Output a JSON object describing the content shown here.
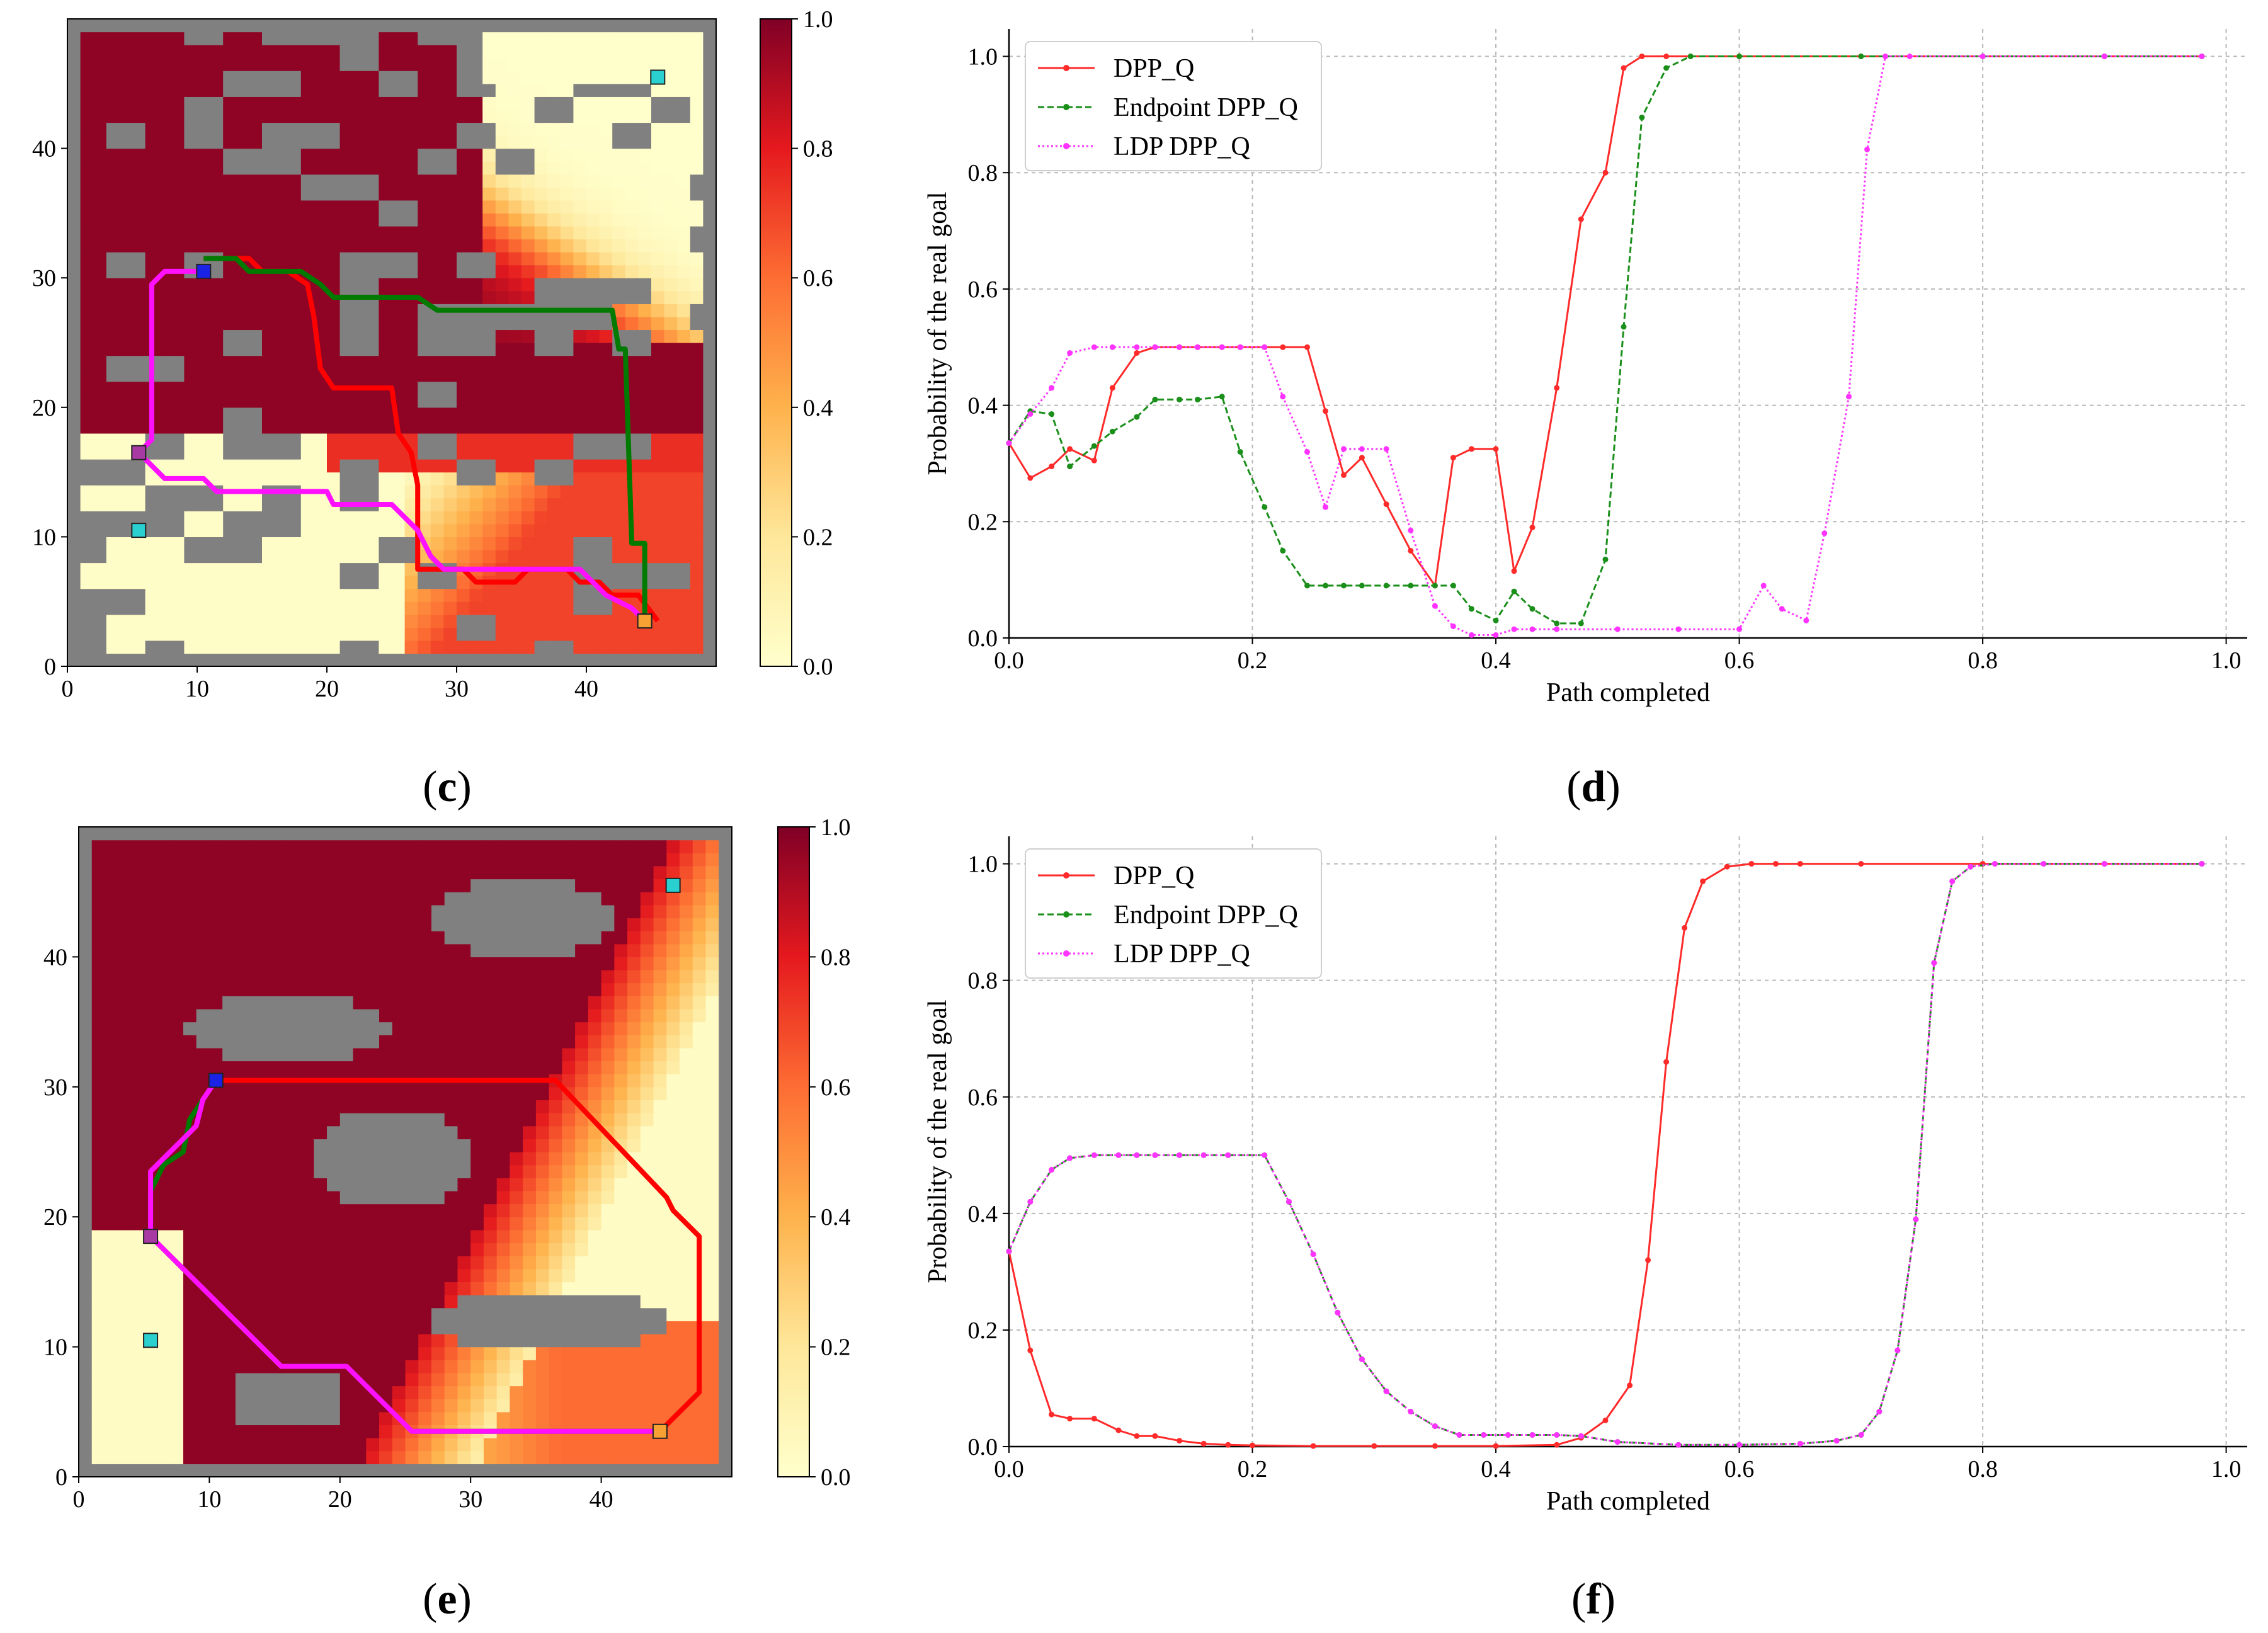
{
  "colors": {
    "obstacle": "#808080",
    "dpp_q": "#ff2a2a",
    "endpoint_dpp_q": "#1a8f1a",
    "ldp_dpp_q": "#ff33ff",
    "start": "#1a22e6",
    "goal_true": "#f7a033",
    "goal_decoy": "#2ad0d0",
    "waypoint": "#a83aa3",
    "path_red": "#ff0000",
    "path_green": "#007a00",
    "path_magenta": "#ff10ff"
  },
  "captions": {
    "c": {
      "open": "(",
      "letter": "c",
      "close": ")"
    },
    "d": {
      "open": "(",
      "letter": "d",
      "close": ")"
    },
    "e": {
      "open": "(",
      "letter": "e",
      "close": ")"
    },
    "f": {
      "open": "(",
      "letter": "f",
      "close": ")"
    }
  },
  "chart_data": [
    {
      "id": "c",
      "type": "heatmap",
      "title": "",
      "map": "maze",
      "xlim": [
        0,
        50
      ],
      "ylim": [
        0,
        50
      ],
      "xticks": [
        "0",
        "10",
        "20",
        "30",
        "40"
      ],
      "yticks": [
        "0",
        "10",
        "20",
        "30",
        "40"
      ],
      "colorbar": {
        "range": [
          0.0,
          1.0
        ],
        "ticks": [
          "0.0",
          "0.2",
          "0.4",
          "0.6",
          "0.8",
          "1.0"
        ]
      },
      "markers": [
        {
          "kind": "start",
          "x": 10.5,
          "y": 30.5
        },
        {
          "kind": "waypoint",
          "x": 5.5,
          "y": 16.5
        },
        {
          "kind": "goal_decoy",
          "x": 5.5,
          "y": 10.5
        },
        {
          "kind": "goal_decoy",
          "x": 45.5,
          "y": 45.5
        },
        {
          "kind": "goal_true",
          "x": 44.5,
          "y": 3.5
        }
      ],
      "paths": [
        {
          "name": "red",
          "points": [
            [
              10.5,
              31.5
            ],
            [
              14,
              31.5
            ],
            [
              15,
              30.5
            ],
            [
              17,
              30.5
            ],
            [
              18.5,
              29.5
            ],
            [
              19,
              27
            ],
            [
              19.5,
              23
            ],
            [
              20.5,
              21.5
            ],
            [
              25,
              21.5
            ],
            [
              25.5,
              18
            ],
            [
              26.5,
              16.5
            ],
            [
              27,
              14
            ],
            [
              27,
              7.5
            ],
            [
              30.5,
              7.5
            ],
            [
              31.5,
              6.5
            ],
            [
              34.5,
              6.5
            ],
            [
              35.5,
              7.5
            ],
            [
              38.5,
              7.5
            ],
            [
              39.5,
              6.5
            ],
            [
              41,
              6.5
            ],
            [
              42,
              5.5
            ],
            [
              44,
              5.5
            ],
            [
              45.5,
              3.5
            ]
          ]
        },
        {
          "name": "green",
          "points": [
            [
              10.5,
              31.5
            ],
            [
              13,
              31.5
            ],
            [
              14,
              30.5
            ],
            [
              18,
              30.5
            ],
            [
              19.5,
              29.5
            ],
            [
              20.5,
              28.5
            ],
            [
              27,
              28.5
            ],
            [
              28.5,
              27.5
            ],
            [
              42,
              27.5
            ],
            [
              42.5,
              24.5
            ],
            [
              43,
              24.5
            ],
            [
              43.5,
              9.5
            ],
            [
              44.5,
              9.5
            ],
            [
              44.5,
              3.5
            ]
          ]
        },
        {
          "name": "magenta",
          "points": [
            [
              10.5,
              30.5
            ],
            [
              7.5,
              30.5
            ],
            [
              6.5,
              29.5
            ],
            [
              6.5,
              17.5
            ],
            [
              5.5,
              16.5
            ],
            [
              7.5,
              14.5
            ],
            [
              10.5,
              14.5
            ],
            [
              11.5,
              13.5
            ],
            [
              20,
              13.5
            ],
            [
              20.5,
              12.5
            ],
            [
              25,
              12.5
            ],
            [
              26,
              11.5
            ],
            [
              27,
              10.5
            ],
            [
              28,
              8.5
            ],
            [
              29,
              7.5
            ],
            [
              39.5,
              7.5
            ],
            [
              40.5,
              6.5
            ],
            [
              41.5,
              5.5
            ],
            [
              43.5,
              4.5
            ],
            [
              44.5,
              3.5
            ]
          ]
        }
      ]
    },
    {
      "id": "d",
      "type": "line",
      "title": "",
      "xlabel": "Path completed",
      "ylabel": "Probability of the real goal",
      "xlim": [
        0.0,
        1.0
      ],
      "ylim": [
        0.0,
        1.0
      ],
      "xticks": [
        "0.0",
        "0.2",
        "0.4",
        "0.6",
        "0.8",
        "1.0"
      ],
      "yticks": [
        "0.0",
        "0.2",
        "0.4",
        "0.6",
        "0.8",
        "1.0"
      ],
      "grid": true,
      "legend": "top-left",
      "series": [
        {
          "name": "DPP_Q",
          "style": "solid",
          "color_key": "dpp_q",
          "x": [
            0.0,
            0.0175,
            0.035,
            0.05,
            0.07,
            0.085,
            0.105,
            0.12,
            0.14,
            0.155,
            0.175,
            0.19,
            0.21,
            0.225,
            0.245,
            0.26,
            0.275,
            0.29,
            0.31,
            0.33,
            0.35,
            0.365,
            0.38,
            0.4,
            0.415,
            0.43,
            0.45,
            0.47,
            0.49,
            0.505,
            0.52,
            0.54,
            0.56,
            0.6,
            0.7,
            0.8,
            0.9,
            0.98
          ],
          "y": [
            0.335,
            0.275,
            0.295,
            0.325,
            0.305,
            0.43,
            0.49,
            0.5,
            0.5,
            0.5,
            0.5,
            0.5,
            0.5,
            0.5,
            0.5,
            0.39,
            0.28,
            0.31,
            0.23,
            0.15,
            0.09,
            0.31,
            0.325,
            0.325,
            0.115,
            0.19,
            0.43,
            0.72,
            0.8,
            0.98,
            1.0,
            1.0,
            1.0,
            1.0,
            1.0,
            1.0,
            1.0,
            1.0
          ]
        },
        {
          "name": "Endpoint DPP_Q",
          "style": "dashed",
          "color_key": "endpoint_dpp_q",
          "x": [
            0.0,
            0.0175,
            0.035,
            0.05,
            0.07,
            0.085,
            0.105,
            0.12,
            0.14,
            0.155,
            0.175,
            0.19,
            0.21,
            0.225,
            0.245,
            0.26,
            0.275,
            0.29,
            0.31,
            0.33,
            0.35,
            0.365,
            0.38,
            0.4,
            0.415,
            0.43,
            0.45,
            0.47,
            0.49,
            0.505,
            0.52,
            0.54,
            0.56,
            0.6,
            0.7,
            0.8,
            0.9,
            0.98
          ],
          "y": [
            0.335,
            0.39,
            0.385,
            0.295,
            0.33,
            0.355,
            0.38,
            0.41,
            0.41,
            0.41,
            0.415,
            0.32,
            0.225,
            0.15,
            0.09,
            0.09,
            0.09,
            0.09,
            0.09,
            0.09,
            0.09,
            0.09,
            0.05,
            0.03,
            0.08,
            0.05,
            0.025,
            0.025,
            0.135,
            0.535,
            0.895,
            0.98,
            1.0,
            1.0,
            1.0,
            1.0,
            1.0,
            1.0
          ]
        },
        {
          "name": "LDP DPP_Q",
          "style": "dotted",
          "color_key": "ldp_dpp_q",
          "x": [
            0.0,
            0.0175,
            0.035,
            0.05,
            0.07,
            0.085,
            0.105,
            0.12,
            0.14,
            0.155,
            0.175,
            0.19,
            0.21,
            0.225,
            0.245,
            0.26,
            0.275,
            0.29,
            0.31,
            0.33,
            0.35,
            0.365,
            0.38,
            0.4,
            0.415,
            0.43,
            0.45,
            0.5,
            0.55,
            0.6,
            0.62,
            0.635,
            0.655,
            0.67,
            0.69,
            0.705,
            0.72,
            0.74,
            0.8,
            0.9,
            0.98
          ],
          "y": [
            0.335,
            0.385,
            0.43,
            0.49,
            0.5,
            0.5,
            0.5,
            0.5,
            0.5,
            0.5,
            0.5,
            0.5,
            0.5,
            0.415,
            0.32,
            0.225,
            0.325,
            0.325,
            0.325,
            0.185,
            0.055,
            0.02,
            0.005,
            0.005,
            0.015,
            0.015,
            0.015,
            0.015,
            0.015,
            0.015,
            0.09,
            0.05,
            0.03,
            0.18,
            0.415,
            0.84,
            1.0,
            1.0,
            1.0,
            1.0,
            1.0
          ]
        }
      ]
    },
    {
      "id": "e",
      "type": "heatmap",
      "title": "",
      "map": "blobs",
      "xlim": [
        0,
        50
      ],
      "ylim": [
        0,
        50
      ],
      "xticks": [
        "0",
        "10",
        "20",
        "30",
        "40"
      ],
      "yticks": [
        "0",
        "10",
        "20",
        "30",
        "40"
      ],
      "colorbar": {
        "range": [
          0.0,
          1.0
        ],
        "ticks": [
          "0.0",
          "0.2",
          "0.4",
          "0.6",
          "0.8",
          "1.0"
        ]
      },
      "markers": [
        {
          "kind": "start",
          "x": 10.5,
          "y": 30.5
        },
        {
          "kind": "waypoint",
          "x": 5.5,
          "y": 18.5
        },
        {
          "kind": "goal_decoy",
          "x": 5.5,
          "y": 10.5
        },
        {
          "kind": "goal_decoy",
          "x": 45.5,
          "y": 45.5
        },
        {
          "kind": "goal_true",
          "x": 44.5,
          "y": 3.5
        }
      ],
      "paths": [
        {
          "name": "red",
          "points": [
            [
              10.5,
              30.5
            ],
            [
              36.5,
              30.5
            ],
            [
              45,
              21.5
            ],
            [
              45.5,
              20.5
            ],
            [
              47.5,
              18.5
            ],
            [
              47.5,
              6.5
            ],
            [
              44.5,
              3.5
            ]
          ]
        },
        {
          "name": "green",
          "points": [
            [
              10.5,
              30.5
            ],
            [
              9.5,
              29
            ],
            [
              8.5,
              27.5
            ],
            [
              8,
              25
            ],
            [
              6.5,
              24
            ],
            [
              5.5,
              22
            ],
            [
              5.5,
              18.5
            ],
            [
              15.5,
              8.5
            ],
            [
              20.5,
              8.5
            ],
            [
              25.5,
              3.5
            ],
            [
              44.5,
              3.5
            ]
          ]
        },
        {
          "name": "magenta",
          "points": [
            [
              10.5,
              30.5
            ],
            [
              9.5,
              29
            ],
            [
              9,
              27
            ],
            [
              8,
              26
            ],
            [
              7,
              25
            ],
            [
              5.5,
              23.5
            ],
            [
              5.5,
              18.5
            ],
            [
              15.5,
              8.5
            ],
            [
              20.5,
              8.5
            ],
            [
              25.5,
              3.5
            ],
            [
              44.5,
              3.5
            ]
          ]
        }
      ]
    },
    {
      "id": "f",
      "type": "line",
      "title": "",
      "xlabel": "Path completed",
      "ylabel": "Probability of the real goal",
      "xlim": [
        0.0,
        1.0
      ],
      "ylim": [
        0.0,
        1.0
      ],
      "xticks": [
        "0.0",
        "0.2",
        "0.4",
        "0.6",
        "0.8",
        "1.0"
      ],
      "yticks": [
        "0.0",
        "0.2",
        "0.4",
        "0.6",
        "0.8",
        "1.0"
      ],
      "grid": true,
      "legend": "top-left",
      "series": [
        {
          "name": "DPP_Q",
          "style": "solid",
          "color_key": "dpp_q",
          "x": [
            0.0,
            0.0175,
            0.035,
            0.05,
            0.07,
            0.09,
            0.105,
            0.12,
            0.14,
            0.16,
            0.18,
            0.2,
            0.25,
            0.3,
            0.35,
            0.4,
            0.45,
            0.47,
            0.49,
            0.51,
            0.525,
            0.54,
            0.555,
            0.57,
            0.59,
            0.61,
            0.63,
            0.65,
            0.7,
            0.8,
            0.9,
            0.98
          ],
          "y": [
            0.335,
            0.165,
            0.055,
            0.048,
            0.048,
            0.028,
            0.018,
            0.018,
            0.01,
            0.005,
            0.003,
            0.002,
            0.001,
            0.001,
            0.001,
            0.001,
            0.003,
            0.015,
            0.045,
            0.105,
            0.32,
            0.66,
            0.89,
            0.97,
            0.995,
            1.0,
            1.0,
            1.0,
            1.0,
            1.0,
            1.0,
            1.0
          ]
        },
        {
          "name": "Endpoint DPP_Q",
          "style": "dashed",
          "color_key": "endpoint_dpp_q",
          "x": [
            0.0,
            0.0175,
            0.035,
            0.05,
            0.07,
            0.09,
            0.105,
            0.12,
            0.14,
            0.16,
            0.18,
            0.21,
            0.23,
            0.25,
            0.27,
            0.29,
            0.31,
            0.33,
            0.35,
            0.37,
            0.39,
            0.41,
            0.43,
            0.45,
            0.47,
            0.5,
            0.55,
            0.6,
            0.65,
            0.68,
            0.7,
            0.715,
            0.73,
            0.745,
            0.76,
            0.775,
            0.79,
            0.81,
            0.85,
            0.9,
            0.98
          ],
          "y": [
            0.335,
            0.42,
            0.475,
            0.495,
            0.5,
            0.5,
            0.5,
            0.5,
            0.5,
            0.5,
            0.5,
            0.5,
            0.42,
            0.33,
            0.23,
            0.15,
            0.095,
            0.06,
            0.035,
            0.02,
            0.02,
            0.02,
            0.02,
            0.02,
            0.018,
            0.008,
            0.003,
            0.003,
            0.005,
            0.01,
            0.02,
            0.06,
            0.165,
            0.39,
            0.83,
            0.97,
            0.995,
            1.0,
            1.0,
            1.0,
            1.0
          ]
        },
        {
          "name": "LDP DPP_Q",
          "style": "dotted",
          "color_key": "ldp_dpp_q",
          "x": [
            0.0,
            0.0175,
            0.035,
            0.05,
            0.07,
            0.09,
            0.105,
            0.12,
            0.14,
            0.16,
            0.18,
            0.21,
            0.23,
            0.25,
            0.27,
            0.29,
            0.31,
            0.33,
            0.35,
            0.37,
            0.39,
            0.41,
            0.43,
            0.45,
            0.47,
            0.5,
            0.55,
            0.6,
            0.65,
            0.68,
            0.7,
            0.715,
            0.73,
            0.745,
            0.76,
            0.775,
            0.79,
            0.81,
            0.85,
            0.9,
            0.98
          ],
          "y": [
            0.335,
            0.42,
            0.475,
            0.495,
            0.5,
            0.5,
            0.5,
            0.5,
            0.5,
            0.5,
            0.5,
            0.5,
            0.42,
            0.33,
            0.23,
            0.15,
            0.095,
            0.06,
            0.035,
            0.02,
            0.02,
            0.02,
            0.02,
            0.02,
            0.018,
            0.008,
            0.003,
            0.003,
            0.005,
            0.01,
            0.02,
            0.06,
            0.165,
            0.39,
            0.83,
            0.97,
            0.995,
            1.0,
            1.0,
            1.0,
            1.0
          ]
        }
      ]
    }
  ]
}
